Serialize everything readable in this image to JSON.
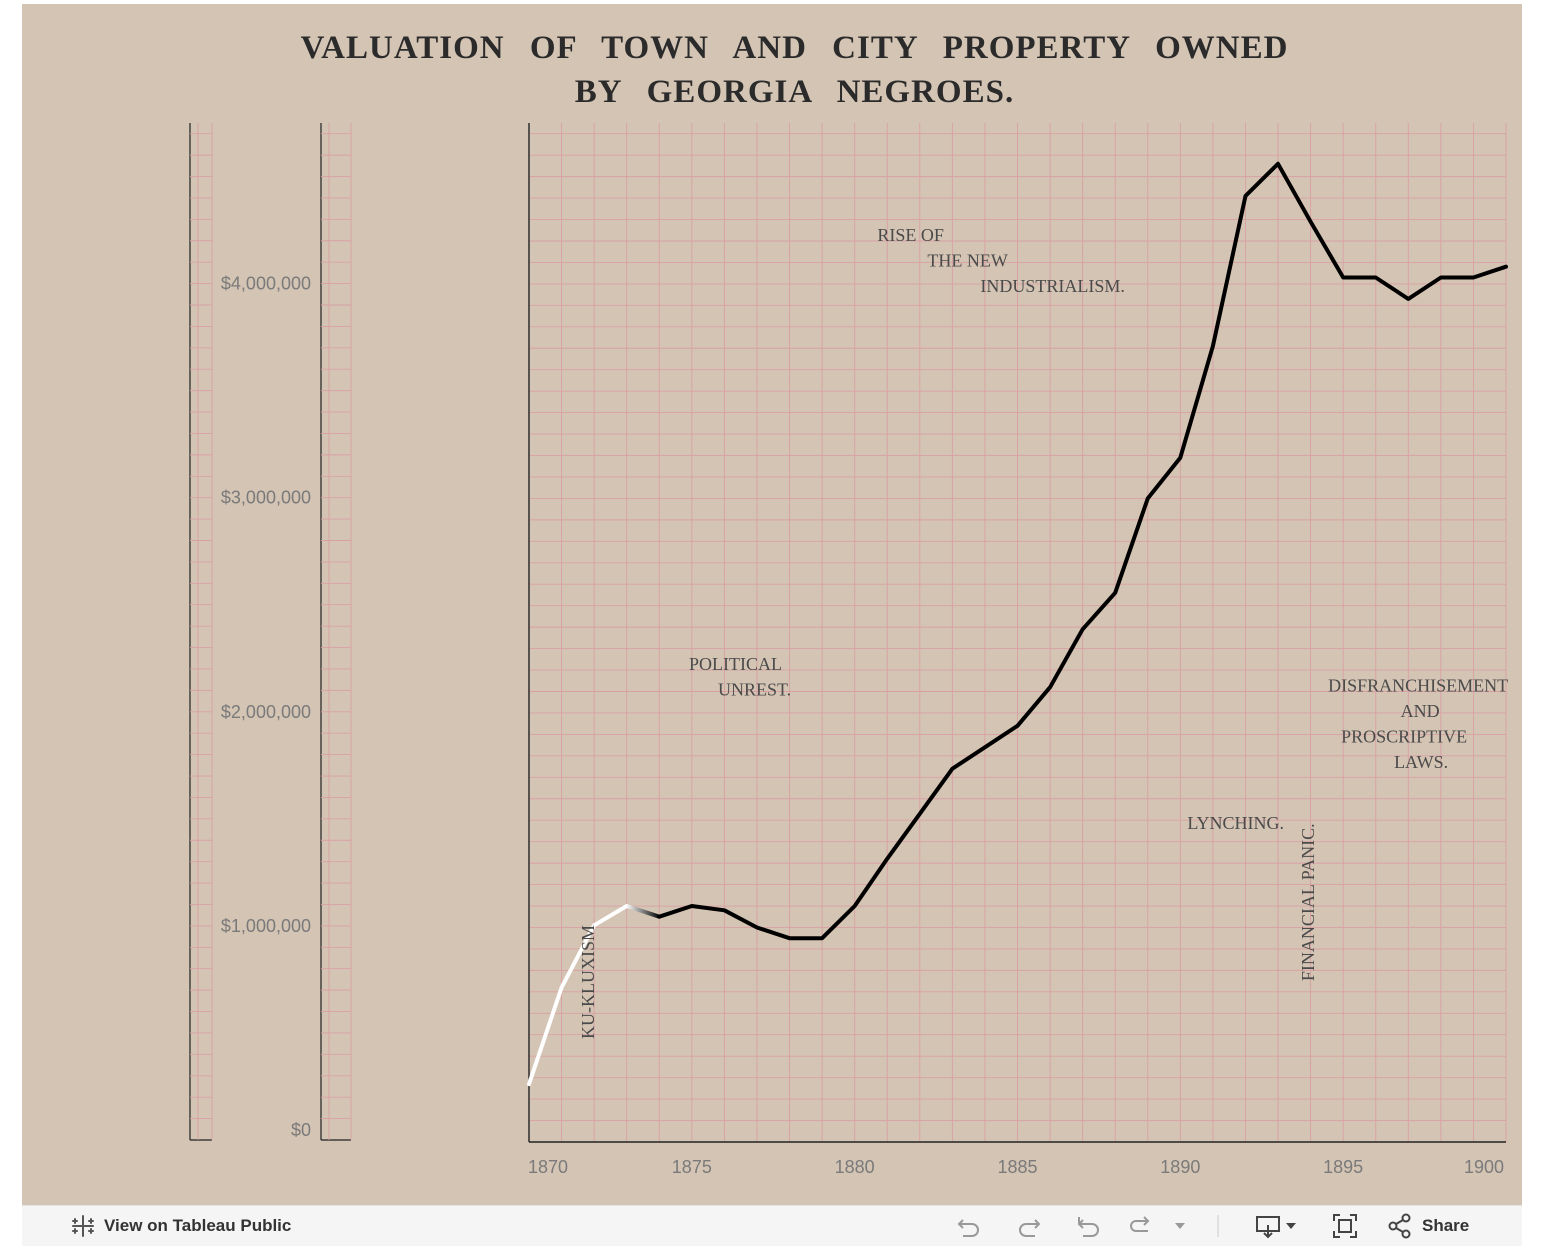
{
  "title_lines": [
    "VALUATION OF TOWN AND CITY PROPERTY OWNED",
    "BY GEORGIA NEGROES."
  ],
  "chart_data": {
    "type": "line",
    "title": "VALUATION OF TOWN AND CITY PROPERTY OWNED BY GEORGIA NEGROES.",
    "xlabel": "",
    "ylabel": "",
    "xlim": [
      1870,
      1900
    ],
    "ylim": [
      0,
      4750000
    ],
    "x_ticks": [
      1870,
      1875,
      1880,
      1885,
      1890,
      1895,
      1900
    ],
    "x_tick_labels": [
      "1870",
      "1875",
      "1880",
      "1885",
      "1890",
      "1895",
      "1900"
    ],
    "y_ticks": [
      0,
      1000000,
      2000000,
      3000000,
      4000000
    ],
    "y_tick_labels": [
      "$0",
      "$1,000,000",
      "$2,000,000",
      "$3,000,000",
      "$4,000,000"
    ],
    "grid": true,
    "series": [
      {
        "x": [
          1870,
          1871,
          1872,
          1873,
          1874,
          1875,
          1876,
          1877,
          1878,
          1879,
          1880,
          1881,
          1882,
          1883,
          1884,
          1885,
          1886,
          1887,
          1888,
          1889,
          1890,
          1891,
          1892,
          1893,
          1894,
          1895,
          1896,
          1897,
          1898,
          1899,
          1900
        ],
        "y": [
          270000,
          720000,
          1010000,
          1100000,
          1050000,
          1100000,
          1080000,
          1000000,
          950000,
          950000,
          1100000,
          1320000,
          1530000,
          1740000,
          1840000,
          1940000,
          2120000,
          2390000,
          2560000,
          3000000,
          3190000,
          3710000,
          4410000,
          4560000,
          4290000,
          4030000,
          4030000,
          3930000,
          4030000,
          4030000,
          4080000
        ],
        "color": "#000000",
        "segment_colors": [
          "#ffffff",
          "#000000"
        ]
      }
    ],
    "annotations": [
      {
        "lines": [
          "KU-KLUXISM"
        ],
        "x": 1872,
        "y": 480000,
        "rotate": -90
      },
      {
        "lines": [
          "POLITICAL",
          "UNREST."
        ],
        "x": 1877,
        "y": 2200000
      },
      {
        "lines": [
          "RISE OF",
          "THE NEW",
          "INDUSTRIALISM."
        ],
        "x": 1883,
        "y": 4200000
      },
      {
        "lines": [
          "LYNCHING."
        ],
        "x": 1891.7,
        "y": 1460000
      },
      {
        "lines": [
          "FINANCIAL PANIC."
        ],
        "x": 1894.1,
        "y": 750000,
        "rotate": -90
      },
      {
        "lines": [
          "DISFRANCHISEMENT",
          "AND",
          "PROSCRIPTIVE",
          "LAWS."
        ],
        "x": 1897.3,
        "y": 2100000
      }
    ]
  },
  "colors": {
    "background": "#d4c4b4",
    "grid": "#d9a0a3",
    "line": "#000000",
    "early_line": "#ffffff",
    "axis_text": "#7a7a7a",
    "annotation_text": "#4a4a4a"
  },
  "toolbar": {
    "view_label": "View on Tableau Public",
    "share_label": "Share",
    "icons": [
      "tableau-logo-icon",
      "undo-icon",
      "redo-icon",
      "revert-icon",
      "refresh-icon",
      "dropdown-caret-icon",
      "download-icon",
      "fullscreen-icon",
      "share-icon"
    ]
  }
}
